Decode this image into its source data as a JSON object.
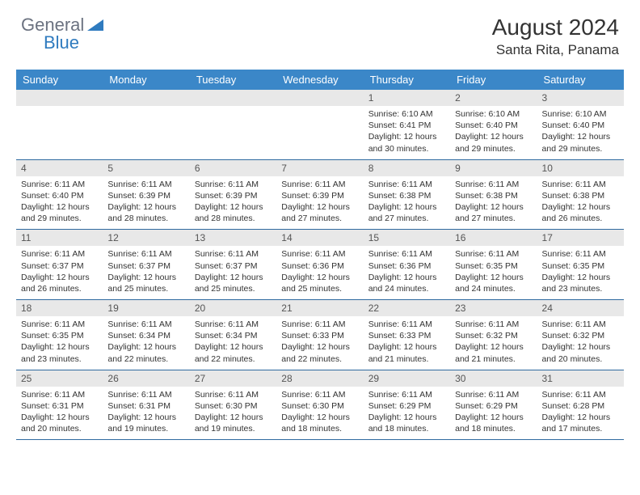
{
  "brand": {
    "part1": "General",
    "part2": "Blue"
  },
  "title": "August 2024",
  "location": "Santa Rita, Panama",
  "colors": {
    "header_bg": "#3b87c8",
    "header_text": "#ffffff",
    "daynum_bg": "#e8e8e8",
    "row_border": "#2f6aa0",
    "logo_gray": "#6b7280",
    "logo_blue": "#2f7bbf",
    "text": "#333333"
  },
  "weekdays": [
    "Sunday",
    "Monday",
    "Tuesday",
    "Wednesday",
    "Thursday",
    "Friday",
    "Saturday"
  ],
  "weeks": [
    {
      "nums": [
        "",
        "",
        "",
        "",
        "1",
        "2",
        "3"
      ],
      "cells": [
        null,
        null,
        null,
        null,
        {
          "sunrise": "6:10 AM",
          "sunset": "6:41 PM",
          "daylight": "12 hours and 30 minutes."
        },
        {
          "sunrise": "6:10 AM",
          "sunset": "6:40 PM",
          "daylight": "12 hours and 29 minutes."
        },
        {
          "sunrise": "6:10 AM",
          "sunset": "6:40 PM",
          "daylight": "12 hours and 29 minutes."
        }
      ]
    },
    {
      "nums": [
        "4",
        "5",
        "6",
        "7",
        "8",
        "9",
        "10"
      ],
      "cells": [
        {
          "sunrise": "6:11 AM",
          "sunset": "6:40 PM",
          "daylight": "12 hours and 29 minutes."
        },
        {
          "sunrise": "6:11 AM",
          "sunset": "6:39 PM",
          "daylight": "12 hours and 28 minutes."
        },
        {
          "sunrise": "6:11 AM",
          "sunset": "6:39 PM",
          "daylight": "12 hours and 28 minutes."
        },
        {
          "sunrise": "6:11 AM",
          "sunset": "6:39 PM",
          "daylight": "12 hours and 27 minutes."
        },
        {
          "sunrise": "6:11 AM",
          "sunset": "6:38 PM",
          "daylight": "12 hours and 27 minutes."
        },
        {
          "sunrise": "6:11 AM",
          "sunset": "6:38 PM",
          "daylight": "12 hours and 27 minutes."
        },
        {
          "sunrise": "6:11 AM",
          "sunset": "6:38 PM",
          "daylight": "12 hours and 26 minutes."
        }
      ]
    },
    {
      "nums": [
        "11",
        "12",
        "13",
        "14",
        "15",
        "16",
        "17"
      ],
      "cells": [
        {
          "sunrise": "6:11 AM",
          "sunset": "6:37 PM",
          "daylight": "12 hours and 26 minutes."
        },
        {
          "sunrise": "6:11 AM",
          "sunset": "6:37 PM",
          "daylight": "12 hours and 25 minutes."
        },
        {
          "sunrise": "6:11 AM",
          "sunset": "6:37 PM",
          "daylight": "12 hours and 25 minutes."
        },
        {
          "sunrise": "6:11 AM",
          "sunset": "6:36 PM",
          "daylight": "12 hours and 25 minutes."
        },
        {
          "sunrise": "6:11 AM",
          "sunset": "6:36 PM",
          "daylight": "12 hours and 24 minutes."
        },
        {
          "sunrise": "6:11 AM",
          "sunset": "6:35 PM",
          "daylight": "12 hours and 24 minutes."
        },
        {
          "sunrise": "6:11 AM",
          "sunset": "6:35 PM",
          "daylight": "12 hours and 23 minutes."
        }
      ]
    },
    {
      "nums": [
        "18",
        "19",
        "20",
        "21",
        "22",
        "23",
        "24"
      ],
      "cells": [
        {
          "sunrise": "6:11 AM",
          "sunset": "6:35 PM",
          "daylight": "12 hours and 23 minutes."
        },
        {
          "sunrise": "6:11 AM",
          "sunset": "6:34 PM",
          "daylight": "12 hours and 22 minutes."
        },
        {
          "sunrise": "6:11 AM",
          "sunset": "6:34 PM",
          "daylight": "12 hours and 22 minutes."
        },
        {
          "sunrise": "6:11 AM",
          "sunset": "6:33 PM",
          "daylight": "12 hours and 22 minutes."
        },
        {
          "sunrise": "6:11 AM",
          "sunset": "6:33 PM",
          "daylight": "12 hours and 21 minutes."
        },
        {
          "sunrise": "6:11 AM",
          "sunset": "6:32 PM",
          "daylight": "12 hours and 21 minutes."
        },
        {
          "sunrise": "6:11 AM",
          "sunset": "6:32 PM",
          "daylight": "12 hours and 20 minutes."
        }
      ]
    },
    {
      "nums": [
        "25",
        "26",
        "27",
        "28",
        "29",
        "30",
        "31"
      ],
      "cells": [
        {
          "sunrise": "6:11 AM",
          "sunset": "6:31 PM",
          "daylight": "12 hours and 20 minutes."
        },
        {
          "sunrise": "6:11 AM",
          "sunset": "6:31 PM",
          "daylight": "12 hours and 19 minutes."
        },
        {
          "sunrise": "6:11 AM",
          "sunset": "6:30 PM",
          "daylight": "12 hours and 19 minutes."
        },
        {
          "sunrise": "6:11 AM",
          "sunset": "6:30 PM",
          "daylight": "12 hours and 18 minutes."
        },
        {
          "sunrise": "6:11 AM",
          "sunset": "6:29 PM",
          "daylight": "12 hours and 18 minutes."
        },
        {
          "sunrise": "6:11 AM",
          "sunset": "6:29 PM",
          "daylight": "12 hours and 18 minutes."
        },
        {
          "sunrise": "6:11 AM",
          "sunset": "6:28 PM",
          "daylight": "12 hours and 17 minutes."
        }
      ]
    }
  ],
  "labels": {
    "sunrise": "Sunrise:",
    "sunset": "Sunset:",
    "daylight": "Daylight:"
  }
}
